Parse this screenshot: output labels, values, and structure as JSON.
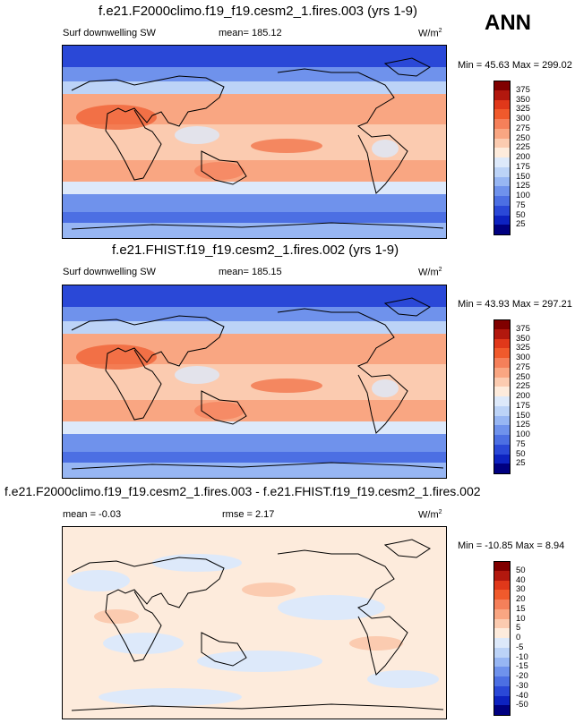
{
  "season": "ANN",
  "panels": [
    {
      "title": "f.e21.F2000climo.f19_f19.cesm2_1.fires.003 (yrs 1-9)",
      "left_label": "Surf downwelling SW",
      "center_label": "mean= 185.12",
      "units": "W/m",
      "units_sup": "2",
      "minmax": "Min =  45.63 Max = 299.02"
    },
    {
      "title": "f.e21.FHIST.f19_f19.cesm2_1.fires.002 (yrs 1-9)",
      "left_label": "Surf downwelling SW",
      "center_label": "mean= 185.15",
      "units": "W/m",
      "units_sup": "2",
      "minmax": "Min =  43.93 Max = 297.21"
    },
    {
      "title": "f.e21.F2000climo.f19_f19.cesm2_1.fires.003 - f.e21.FHIST.f19_f19.cesm2_1.fires.002",
      "left_label": "mean =  -0.03",
      "center_label": "rmse =   2.17",
      "units": "W/m",
      "units_sup": "2",
      "minmax": "Min = -10.85 Max =   8.94"
    }
  ],
  "chart_data": [
    {
      "type": "heatmap",
      "title": "f.e21.F2000climo.f19_f19.cesm2_1.fires.003 (yrs 1-9)",
      "variable": "Surf downwelling SW",
      "units": "W/m2",
      "mean": 185.12,
      "min": 45.63,
      "max": 299.02,
      "colorbar_levels": [
        "375",
        "350",
        "325",
        "300",
        "275",
        "250",
        "225",
        "200",
        "175",
        "150",
        "125",
        "100",
        "75",
        "50",
        "25"
      ],
      "colorbar_colors": [
        "#800000",
        "#b2180e",
        "#e0381a",
        "#f05a2c",
        "#f5805a",
        "#f9a682",
        "#fbcbb0",
        "#fdebdc",
        "#dde9fa",
        "#bcd3f7",
        "#97b6f3",
        "#6f92ec",
        "#4c6fe3",
        "#2a48d7",
        "#0d22c0",
        "#000080"
      ]
    },
    {
      "type": "heatmap",
      "title": "f.e21.FHIST.f19_f19.cesm2_1.fires.002 (yrs 1-9)",
      "variable": "Surf downwelling SW",
      "units": "W/m2",
      "mean": 185.15,
      "min": 43.93,
      "max": 297.21,
      "colorbar_levels": [
        "375",
        "350",
        "325",
        "300",
        "275",
        "250",
        "225",
        "200",
        "175",
        "150",
        "125",
        "100",
        "75",
        "50",
        "25"
      ],
      "colorbar_colors": [
        "#800000",
        "#b2180e",
        "#e0381a",
        "#f05a2c",
        "#f5805a",
        "#f9a682",
        "#fbcbb0",
        "#fdebdc",
        "#dde9fa",
        "#bcd3f7",
        "#97b6f3",
        "#6f92ec",
        "#4c6fe3",
        "#2a48d7",
        "#0d22c0",
        "#000080"
      ]
    },
    {
      "type": "heatmap",
      "title": "f.e21.F2000climo.f19_f19.cesm2_1.fires.003 - f.e21.FHIST.f19_f19.cesm2_1.fires.002",
      "units": "W/m2",
      "mean": -0.03,
      "rmse": 2.17,
      "min": -10.85,
      "max": 8.94,
      "colorbar_levels": [
        "50",
        "40",
        "30",
        "20",
        "15",
        "10",
        "5",
        "0",
        "-5",
        "-10",
        "-15",
        "-20",
        "-30",
        "-40",
        "-50"
      ],
      "colorbar_colors": [
        "#800000",
        "#b2180e",
        "#e0381a",
        "#f05a2c",
        "#f5805a",
        "#f9a682",
        "#fbcbb0",
        "#fdebdc",
        "#dde9fa",
        "#bcd3f7",
        "#97b6f3",
        "#6f92ec",
        "#4c6fe3",
        "#2a48d7",
        "#0d22c0",
        "#000080"
      ]
    }
  ]
}
